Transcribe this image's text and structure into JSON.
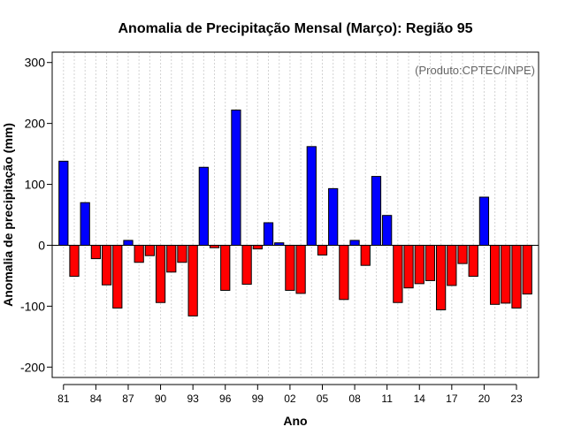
{
  "chart_data": {
    "type": "bar",
    "title": "Anomalia de Precipitação Mensal (Março): Região 95",
    "xlabel": "Ano",
    "ylabel": "Anomalia de precipitação (mm)",
    "credit": "(Produto:CPTEC/INPE)",
    "ylim": [
      -217,
      317
    ],
    "xlim": [
      1979.95,
      2025.05
    ],
    "yticks": [
      -200,
      -100,
      0,
      100,
      200,
      300
    ],
    "xticks": [
      {
        "year": 1981,
        "label": "81"
      },
      {
        "year": 1984,
        "label": "84"
      },
      {
        "year": 1987,
        "label": "87"
      },
      {
        "year": 1990,
        "label": "90"
      },
      {
        "year": 1993,
        "label": "93"
      },
      {
        "year": 1996,
        "label": "96"
      },
      {
        "year": 1999,
        "label": "99"
      },
      {
        "year": 2002,
        "label": "02"
      },
      {
        "year": 2005,
        "label": "05"
      },
      {
        "year": 2008,
        "label": "08"
      },
      {
        "year": 2011,
        "label": "11"
      },
      {
        "year": 2014,
        "label": "14"
      },
      {
        "year": 2017,
        "label": "17"
      },
      {
        "year": 2020,
        "label": "20"
      },
      {
        "year": 2023,
        "label": "23"
      }
    ],
    "grid": true,
    "positive_color": "#0000ff",
    "negative_color": "#ff0000",
    "years": [
      1981,
      1982,
      1983,
      1984,
      1985,
      1986,
      1987,
      1988,
      1989,
      1990,
      1991,
      1992,
      1993,
      1994,
      1995,
      1996,
      1997,
      1998,
      1999,
      2000,
      2001,
      2002,
      2003,
      2004,
      2005,
      2006,
      2007,
      2008,
      2009,
      2010,
      2011,
      2012,
      2013,
      2014,
      2015,
      2016,
      2017,
      2018,
      2019,
      2020,
      2021,
      2022,
      2023,
      2024
    ],
    "values": [
      138,
      -51,
      70,
      -22,
      -65,
      -103,
      8,
      -28,
      -17,
      -94,
      -44,
      -28,
      -116,
      128,
      -4,
      -74,
      222,
      -64,
      -6,
      37,
      4,
      -74,
      -79,
      162,
      -16,
      93,
      -89,
      8,
      -33,
      113,
      49,
      -94,
      -70,
      -63,
      -58,
      -106,
      -66,
      -30,
      -51,
      79,
      -97,
      -95,
      -103,
      -80
    ]
  }
}
